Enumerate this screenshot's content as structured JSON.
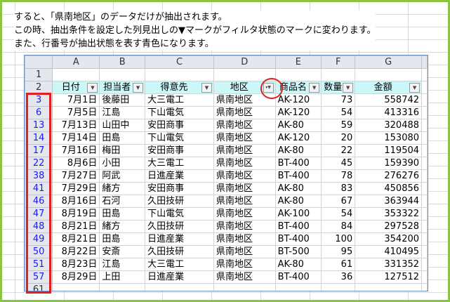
{
  "instructions": [
    "すると、「県南地区」のデータだけが抽出されます。",
    "この時、抽出条件を設定した列見出しの▼マークがフィルタ状態のマークに変わります。",
    "また、行番号が抽出状態を表す青色になります。"
  ],
  "columns": [
    "A",
    "B",
    "C",
    "D",
    "E",
    "F",
    "G"
  ],
  "headers": [
    "日付",
    "担当者",
    "得意先",
    "地区",
    "商品名",
    "数量",
    "金額"
  ],
  "filtered_column": "地区",
  "filtered_row_number_color": "#1a1aee",
  "rows": [
    {
      "n": "3",
      "d": [
        "7月1日",
        "後藤田",
        "大三電工",
        "県南地区",
        "AK-120",
        "73",
        "558742"
      ]
    },
    {
      "n": "6",
      "d": [
        "7月5日",
        "江島",
        "下山電気",
        "県南地区",
        "AK-120",
        "54",
        "413316"
      ]
    },
    {
      "n": "13",
      "d": [
        "7月13日",
        "山田中",
        "安田商事",
        "県南地区",
        "AK-80",
        "59",
        "320488"
      ]
    },
    {
      "n": "14",
      "d": [
        "7月14日",
        "田島",
        "下山電気",
        "県南地区",
        "AK-120",
        "20",
        "153080"
      ]
    },
    {
      "n": "17",
      "d": [
        "7月16日",
        "梅田",
        "安田商事",
        "県南地区",
        "AK-80",
        "22",
        "119504"
      ]
    },
    {
      "n": "22",
      "d": [
        "8月6日",
        "小田",
        "大三電工",
        "県南地区",
        "BT-400",
        "45",
        "159390"
      ]
    },
    {
      "n": "38",
      "d": [
        "7月27日",
        "阿武",
        "日進産業",
        "県南地区",
        "BT-400",
        "78",
        "276276"
      ]
    },
    {
      "n": "41",
      "d": [
        "7月29日",
        "緒方",
        "安田商事",
        "県南地区",
        "AK-80",
        "83",
        "450856"
      ]
    },
    {
      "n": "46",
      "d": [
        "8月16日",
        "石河",
        "久田技研",
        "県南地区",
        "AK-80",
        "67",
        "363944"
      ]
    },
    {
      "n": "47",
      "d": [
        "8月19日",
        "田島",
        "下山電気",
        "県南地区",
        "AK-100",
        "54",
        "353322"
      ]
    },
    {
      "n": "48",
      "d": [
        "8月21日",
        "緒方",
        "久田技研",
        "県南地区",
        "BT-400",
        "84",
        "297528"
      ]
    },
    {
      "n": "49",
      "d": [
        "8月21日",
        "田島",
        "日進産業",
        "県南地区",
        "BT-400",
        "100",
        "354200"
      ]
    },
    {
      "n": "50",
      "d": [
        "8月22日",
        "安斎",
        "久田技研",
        "県南地区",
        "BT-500",
        "95",
        "410495"
      ]
    },
    {
      "n": "51",
      "d": [
        "8月23日",
        "江島",
        "大三電工",
        "県南地区",
        "AK-80",
        "61",
        "331352"
      ]
    },
    {
      "n": "57",
      "d": [
        "8月29日",
        "上田",
        "日進産業",
        "県南地区",
        "BT-400",
        "36",
        "127512"
      ]
    }
  ],
  "row_labels": {
    "r1": "1",
    "r2": "2",
    "last": "61"
  }
}
